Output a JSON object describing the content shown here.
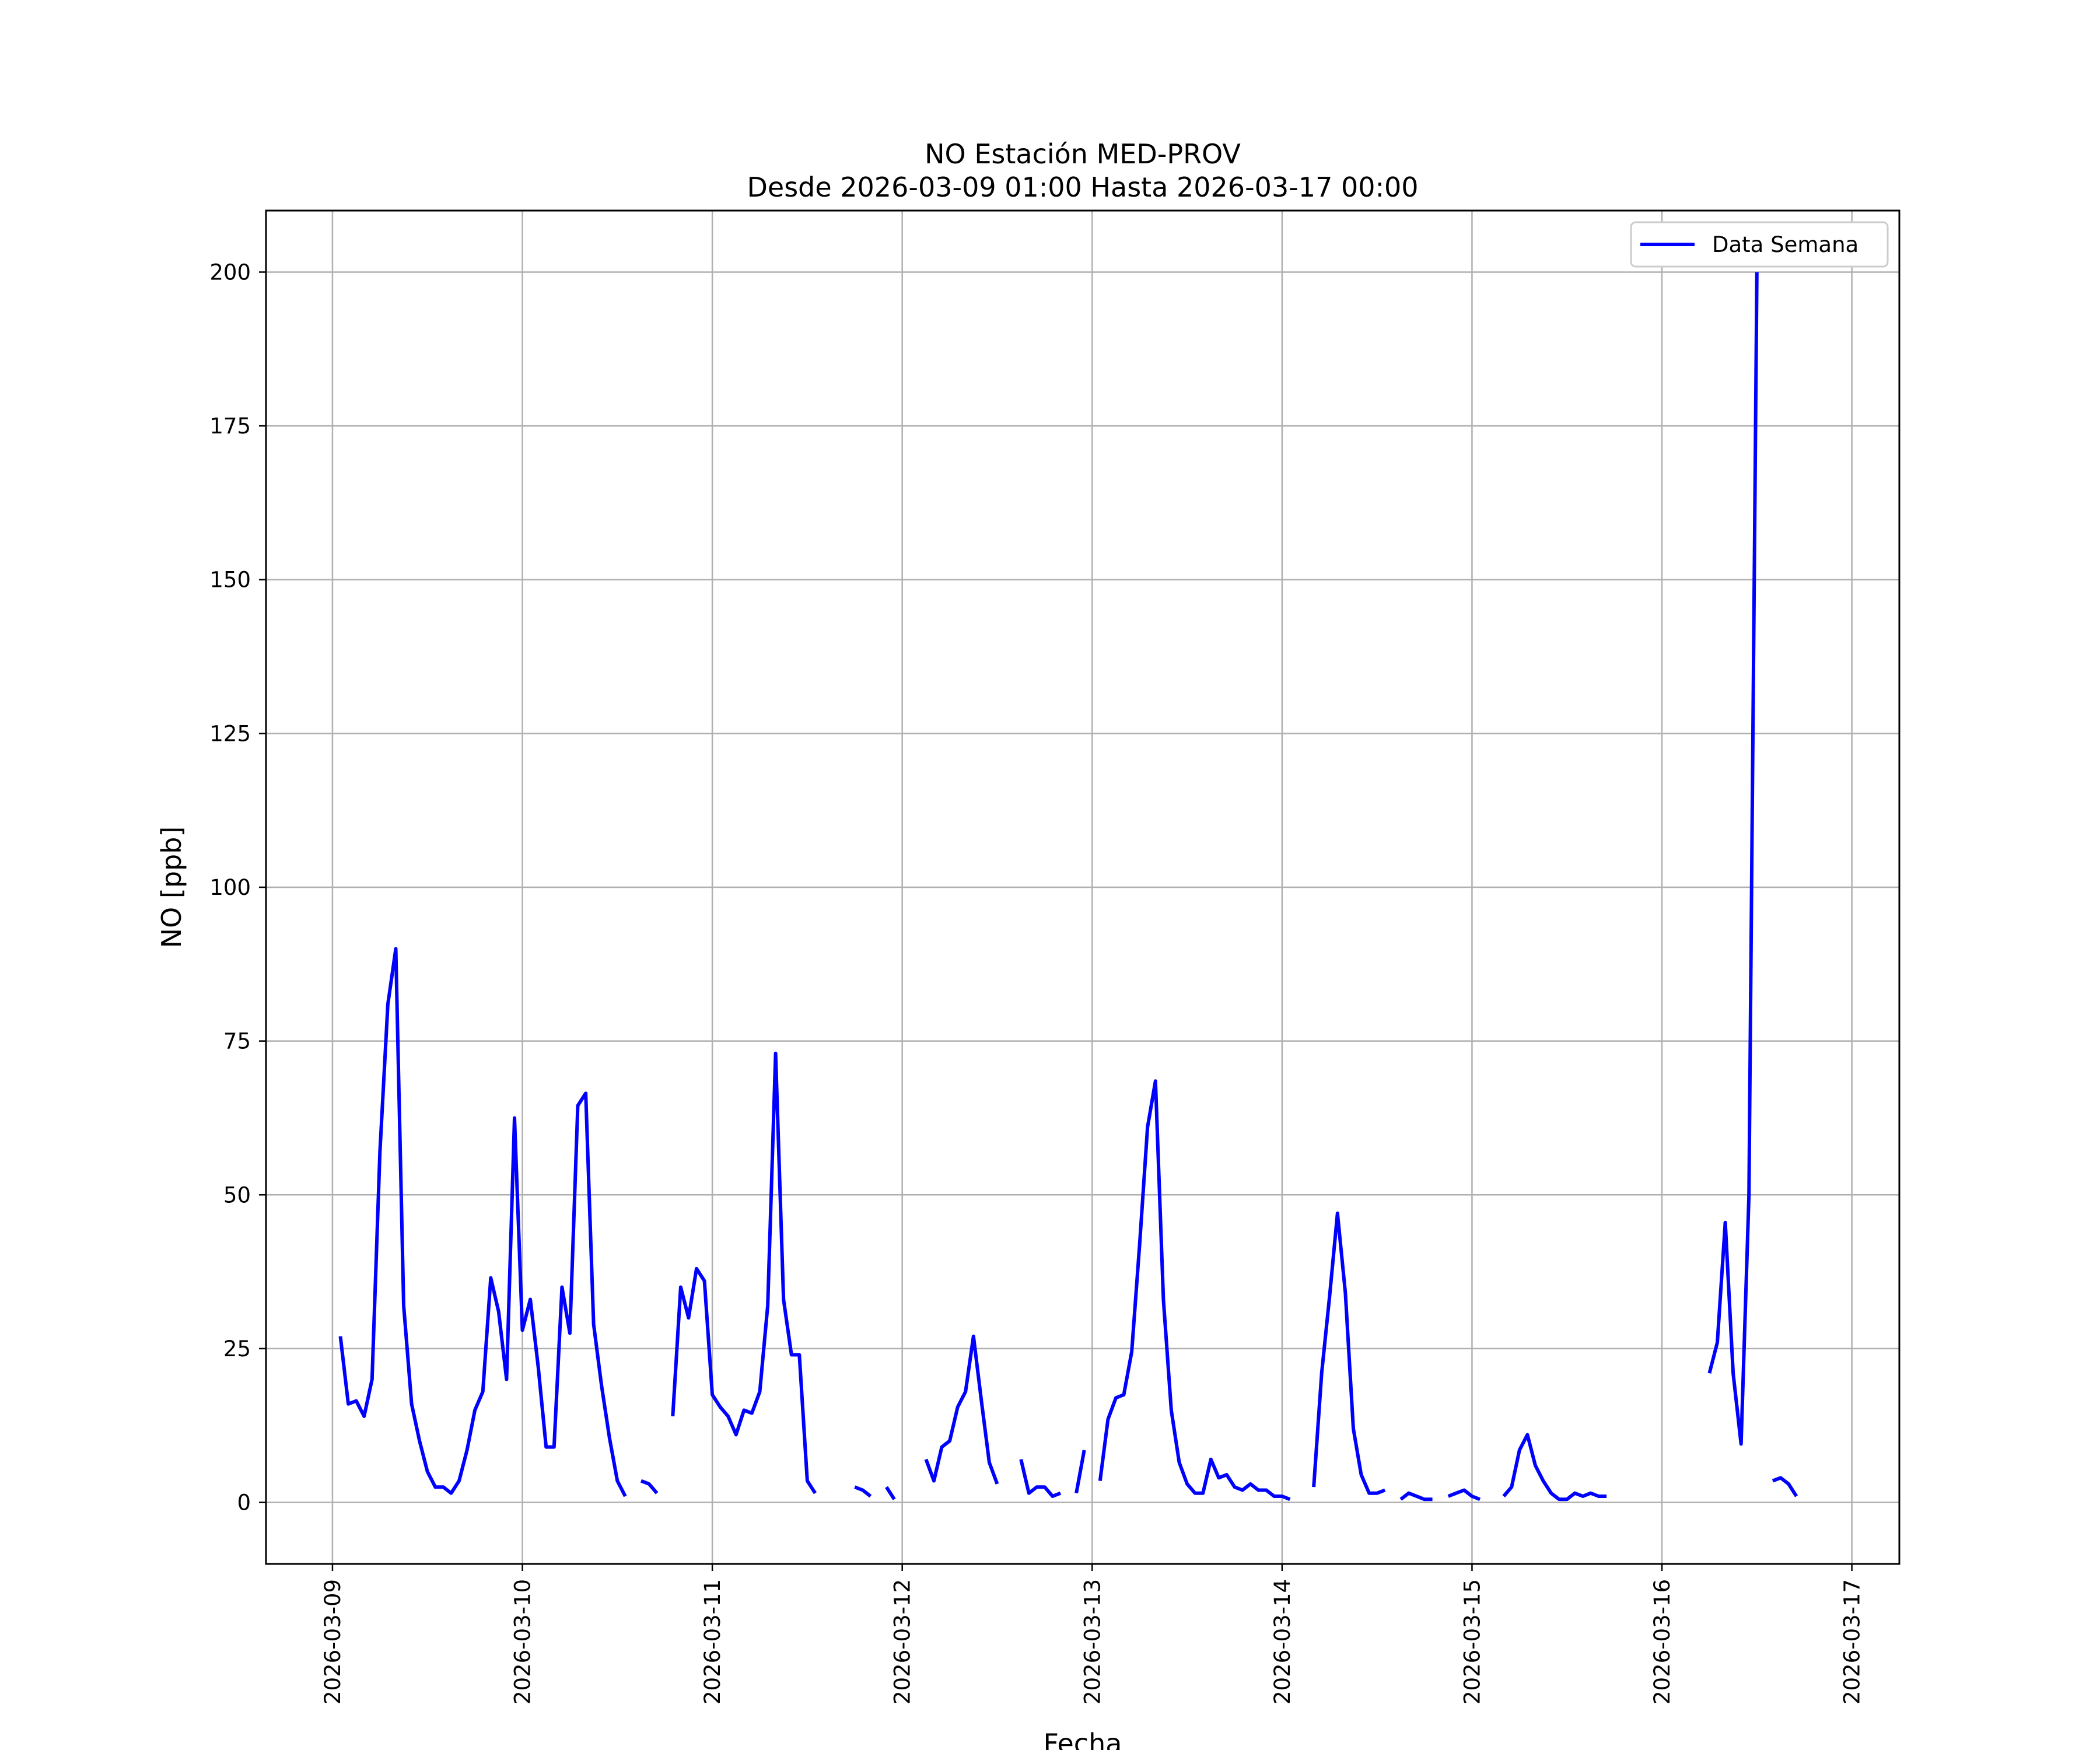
{
  "chart_data": {
    "type": "line",
    "title": "NO Estación MED-PROV",
    "subtitle": "Desde 2026-03-09 01:00 Hasta 2026-03-17 00:00",
    "xlabel": "Fecha",
    "ylabel": "NO [ppb]",
    "ylim": [
      -10,
      210
    ],
    "xlim": [
      -0.35,
      8.25
    ],
    "yticks": [
      0,
      25,
      50,
      75,
      100,
      125,
      150,
      175,
      200
    ],
    "xticks": [
      "2026-03-09",
      "2026-03-10",
      "2026-03-11",
      "2026-03-12",
      "2026-03-13",
      "2026-03-14",
      "2026-03-15",
      "2026-03-16",
      "2026-03-17"
    ],
    "grid": true,
    "legend_position": "top-right",
    "line_color": "#0000ff",
    "series": [
      {
        "name": "Data Semana",
        "segments": [
          [
            [
              1,
              27
            ],
            [
              2,
              16
            ],
            [
              3,
              16.5
            ],
            [
              4,
              14
            ],
            [
              5,
              20
            ],
            [
              6,
              57
            ],
            [
              7,
              81
            ],
            [
              8,
              90
            ],
            [
              9,
              32
            ],
            [
              10,
              16
            ],
            [
              11,
              10
            ],
            [
              12,
              5
            ],
            [
              13,
              2.5
            ],
            [
              14,
              2.5
            ],
            [
              15,
              1.5
            ],
            [
              16,
              3.5
            ],
            [
              17,
              8.5
            ],
            [
              18,
              15
            ],
            [
              19,
              18
            ],
            [
              20,
              36.5
            ],
            [
              21,
              31
            ],
            [
              22,
              20
            ],
            [
              23,
              62.5
            ],
            [
              24,
              28
            ],
            [
              25,
              33
            ],
            [
              26,
              22
            ],
            [
              27,
              9
            ],
            [
              28,
              9
            ],
            [
              29,
              35
            ],
            [
              30,
              27.5
            ],
            [
              31,
              64.5
            ],
            [
              32,
              66.5
            ],
            [
              33,
              29
            ],
            [
              34,
              19
            ],
            [
              35,
              10.5
            ],
            [
              36,
              3.5
            ],
            [
              37,
              1
            ]
          ],
          [
            [
              39,
              3.5
            ],
            [
              40,
              3
            ],
            [
              41,
              1.5
            ]
          ],
          [
            [
              43,
              14
            ],
            [
              44,
              35
            ],
            [
              45,
              30
            ],
            [
              46,
              38
            ],
            [
              47,
              36
            ],
            [
              48,
              17.5
            ],
            [
              49,
              15.5
            ],
            [
              50,
              14
            ],
            [
              51,
              11
            ],
            [
              52,
              15
            ],
            [
              53,
              14.5
            ],
            [
              54,
              18
            ],
            [
              55,
              32
            ],
            [
              56,
              73
            ],
            [
              57,
              33
            ],
            [
              58,
              24
            ],
            [
              59,
              24
            ],
            [
              60,
              3.5
            ],
            [
              61,
              1.5
            ]
          ],
          [
            [
              66,
              2.5
            ],
            [
              67,
              2
            ],
            [
              68,
              1
            ]
          ],
          [
            [
              70,
              2.5
            ],
            [
              71,
              0.5
            ]
          ],
          [
            [
              75,
              7
            ],
            [
              76,
              3.5
            ],
            [
              77,
              9
            ],
            [
              78,
              10
            ],
            [
              79,
              15.5
            ],
            [
              80,
              18
            ],
            [
              81,
              27
            ],
            [
              82,
              16.5
            ],
            [
              83,
              6.5
            ],
            [
              84,
              3
            ]
          ],
          [
            [
              87,
              7
            ],
            [
              88,
              1.5
            ],
            [
              89,
              2.5
            ],
            [
              90,
              2.5
            ],
            [
              91,
              1
            ],
            [
              92,
              1.5
            ]
          ],
          [
            [
              94,
              1.5
            ],
            [
              95,
              8.5
            ]
          ],
          [
            [
              97,
              3.5
            ],
            [
              98,
              13.5
            ],
            [
              99,
              17
            ],
            [
              100,
              17.5
            ],
            [
              101,
              24.5
            ],
            [
              102,
              42
            ],
            [
              103,
              61
            ],
            [
              104,
              68.5
            ],
            [
              105,
              33
            ],
            [
              106,
              15
            ],
            [
              107,
              6.5
            ],
            [
              108,
              3
            ],
            [
              109,
              1.5
            ],
            [
              110,
              1.5
            ],
            [
              111,
              7
            ],
            [
              112,
              4
            ],
            [
              113,
              4.5
            ],
            [
              114,
              2.5
            ],
            [
              115,
              2
            ],
            [
              116,
              3
            ],
            [
              117,
              2
            ],
            [
              118,
              2
            ],
            [
              119,
              1
            ],
            [
              120,
              1
            ],
            [
              121,
              0.5
            ]
          ],
          [
            [
              124,
              2.5
            ],
            [
              125,
              21
            ],
            [
              126,
              33.5
            ],
            [
              127,
              47
            ],
            [
              128,
              34
            ],
            [
              129,
              12
            ],
            [
              130,
              4.5
            ],
            [
              131,
              1.5
            ],
            [
              132,
              1.5
            ],
            [
              133,
              2
            ]
          ],
          [
            [
              135,
              0.5
            ],
            [
              136,
              1.5
            ],
            [
              137,
              1
            ],
            [
              138,
              0.5
            ],
            [
              139,
              0.5
            ]
          ],
          [
            [
              141,
              1
            ],
            [
              142,
              1.5
            ],
            [
              143,
              2
            ],
            [
              144,
              1
            ],
            [
              145,
              0.5
            ]
          ],
          [
            [
              148,
              1
            ],
            [
              149,
              2.5
            ],
            [
              150,
              8.5
            ],
            [
              151,
              11
            ],
            [
              152,
              6
            ],
            [
              153,
              3.5
            ],
            [
              154,
              1.5
            ],
            [
              155,
              0.5
            ],
            [
              156,
              0.5
            ],
            [
              157,
              1.5
            ],
            [
              158,
              1
            ],
            [
              159,
              1.5
            ],
            [
              160,
              1
            ],
            [
              161,
              1
            ]
          ],
          [
            [
              174,
              21
            ],
            [
              175,
              26
            ],
            [
              176,
              45.5
            ],
            [
              177,
              21
            ],
            [
              178,
              9.5
            ],
            [
              179,
              50
            ],
            [
              180,
              200
            ]
          ],
          [
            [
              182,
              3.5
            ],
            [
              183,
              4
            ],
            [
              184,
              3
            ],
            [
              185,
              1
            ]
          ]
        ]
      }
    ]
  }
}
